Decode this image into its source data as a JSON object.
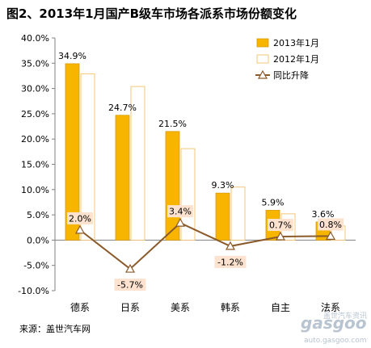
{
  "title": "图2、2013年1月国产B级车市场各派系市场份额变化",
  "source": "来源：盖世汽车网",
  "watermark": {
    "name": "gasgoo",
    "url": "auto.gasgoo.com",
    "tagline": "盖世汽车资讯"
  },
  "colors": {
    "bar2013": "#f7b500",
    "bar2013_edge": "#d99a00",
    "bar2012": "#ffffff",
    "bar2012_edge": "#f3c77a",
    "line": "#8b5a2b",
    "label_bg": "#fde3cf"
  },
  "chart_data": {
    "type": "bar",
    "categories": [
      "德系",
      "日系",
      "美系",
      "韩系",
      "自主",
      "法系"
    ],
    "series": [
      {
        "name": "2013年1月",
        "values": [
          34.9,
          24.7,
          21.5,
          9.3,
          5.9,
          3.6
        ]
      },
      {
        "name": "2012年1月",
        "values": [
          32.9,
          30.4,
          18.1,
          10.5,
          5.2,
          2.8
        ]
      }
    ],
    "line_series": {
      "name": "同比升降",
      "values": [
        2.0,
        -5.7,
        3.4,
        -1.2,
        0.7,
        0.8
      ]
    },
    "bar_labels": [
      "34.9%",
      "24.7%",
      "21.5%",
      "9.3%",
      "5.9%",
      "3.6%"
    ],
    "line_labels": [
      "2.0%",
      "-5.7%",
      "3.4%",
      "-1.2%",
      "0.7%",
      "0.8%"
    ],
    "ylim": [
      -10,
      40
    ],
    "yticks": [
      -10,
      -5,
      0,
      5,
      10,
      15,
      20,
      25,
      30,
      35,
      40
    ],
    "ytick_labels": [
      "-10.0%",
      "-5.0%",
      "0.0%",
      "5.0%",
      "10.0%",
      "15.0%",
      "20.0%",
      "25.0%",
      "30.0%",
      "35.0%",
      "40.0%"
    ],
    "grid": false,
    "legend_position": "top-right"
  }
}
